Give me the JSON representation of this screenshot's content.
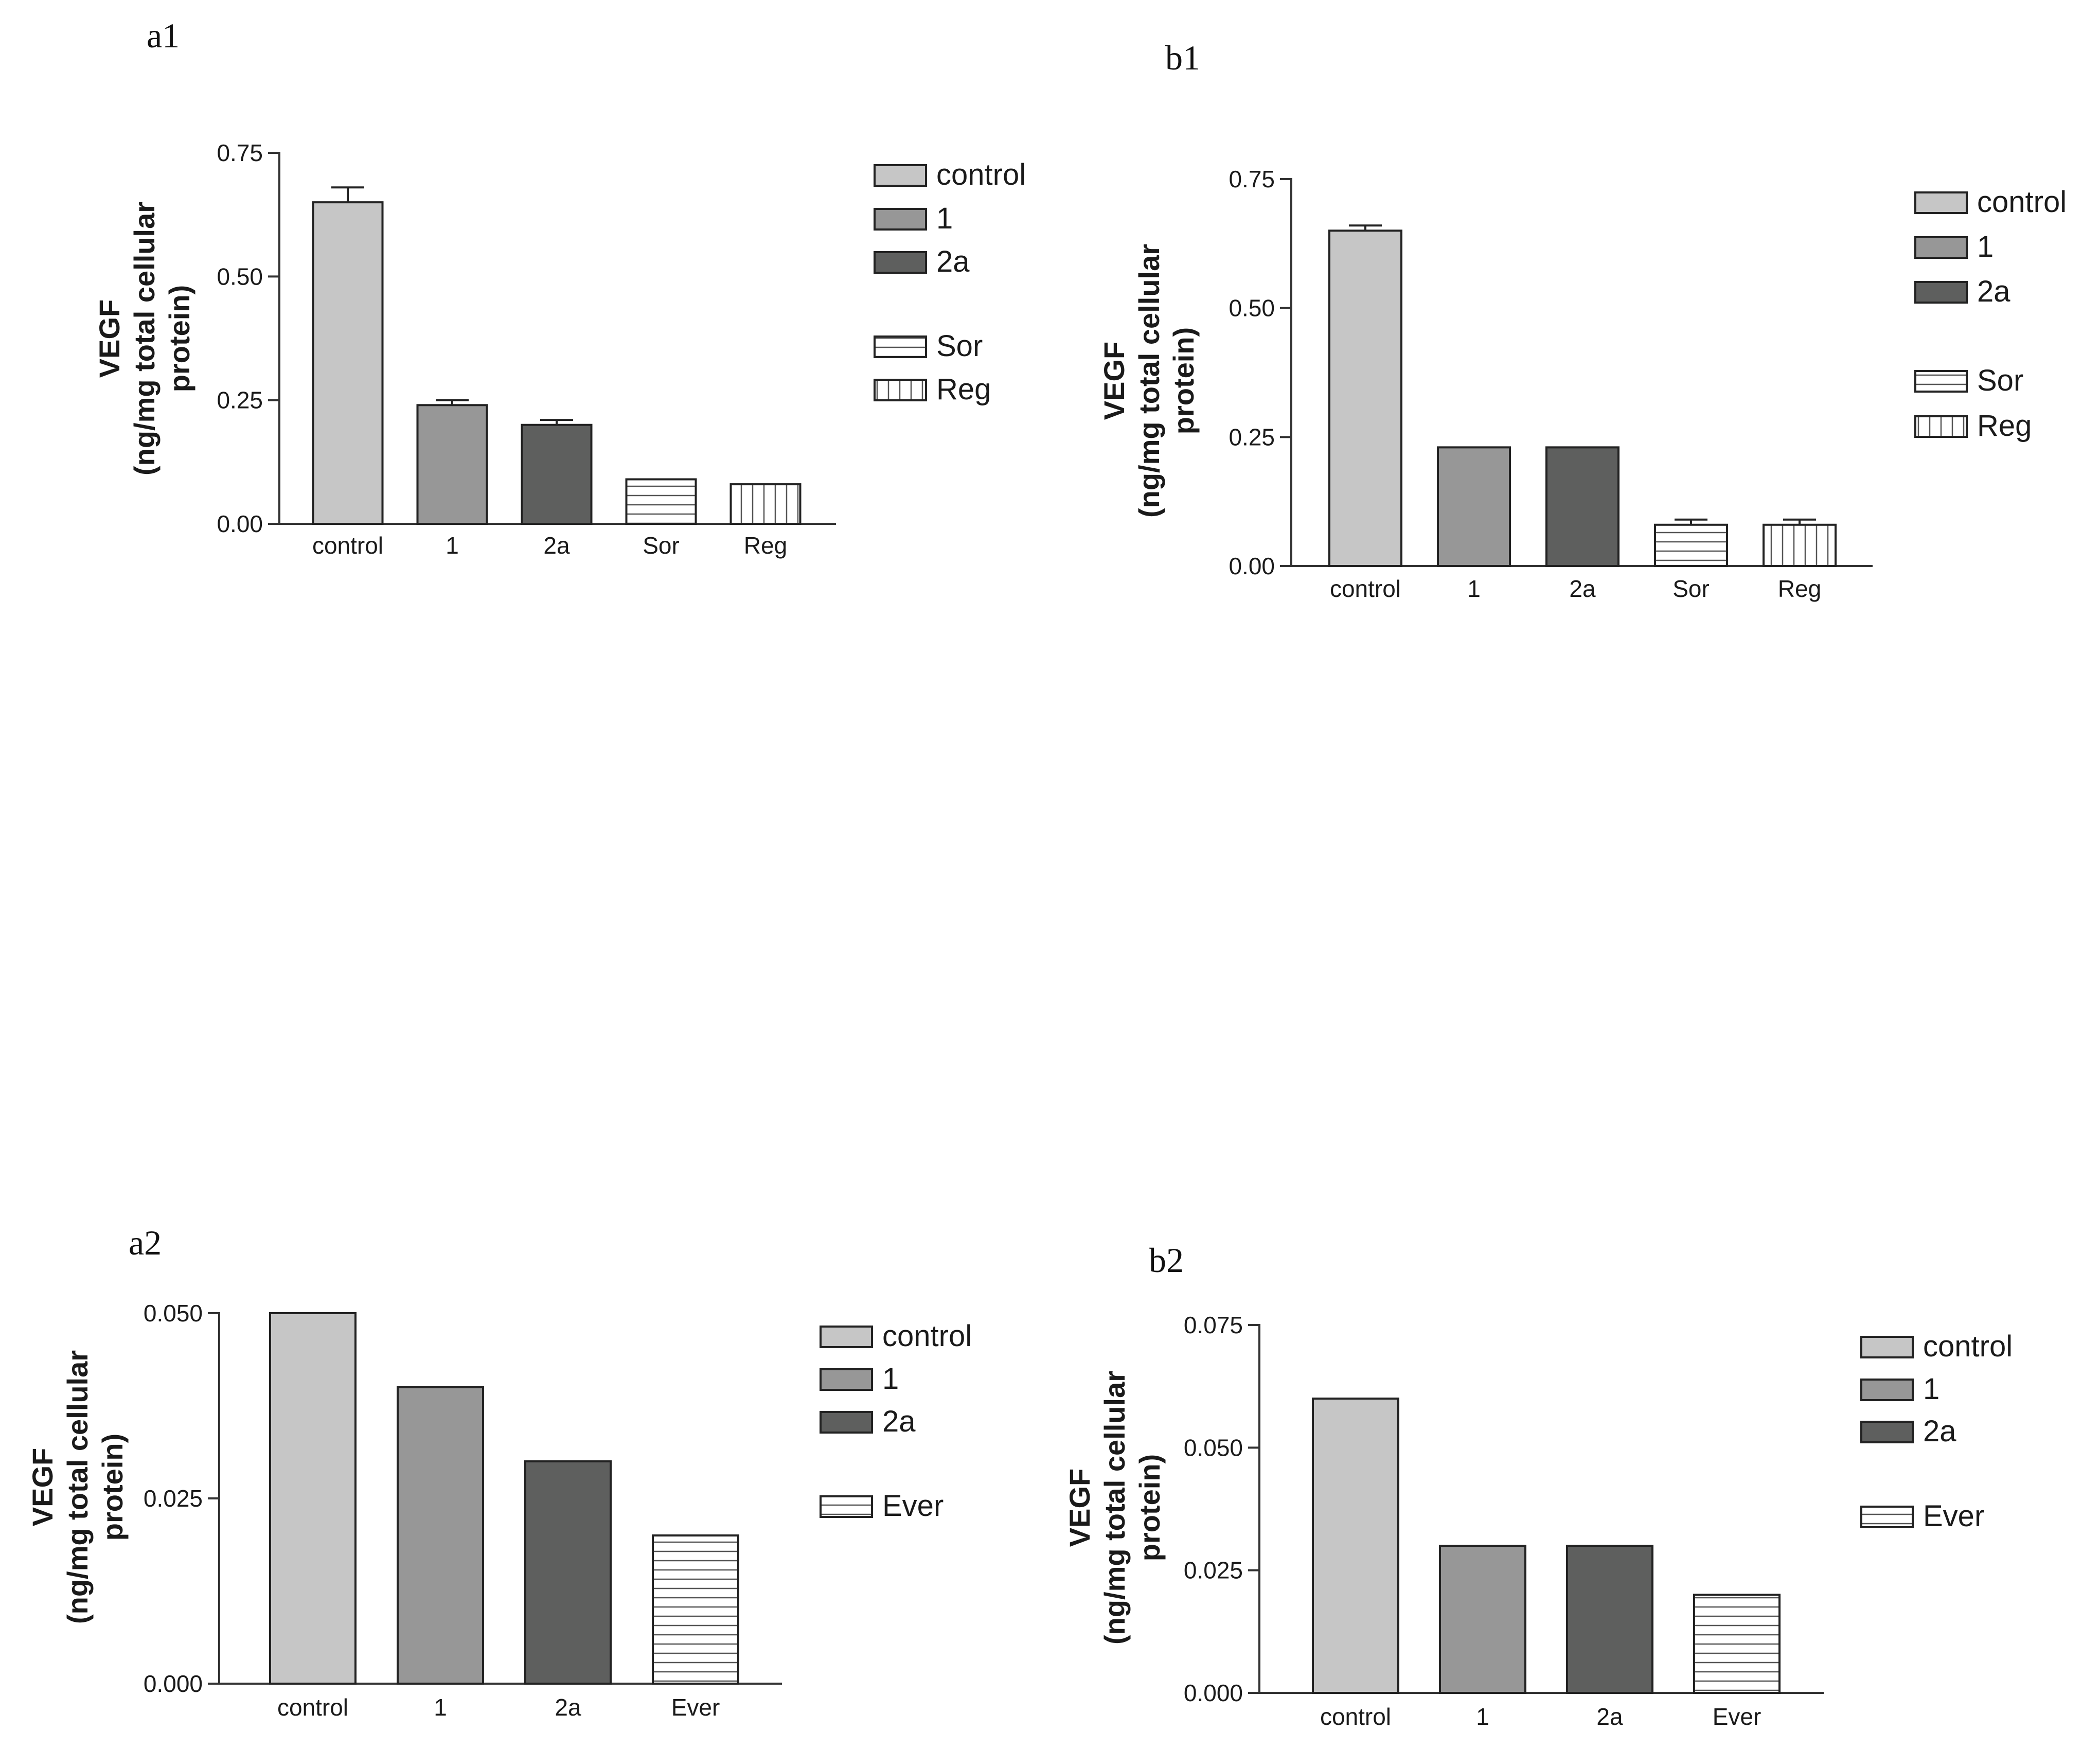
{
  "colors": {
    "control": "#c6c6c6",
    "1": "#979797",
    "2a": "#5e5f5e",
    "patterned": "#ffffff",
    "axis": "#333333"
  },
  "chart_data": [
    {
      "panel": "a1",
      "type": "bar",
      "categories": [
        "control",
        "1",
        "2a",
        "Sor",
        "Reg"
      ],
      "values": [
        0.65,
        0.24,
        0.2,
        0.09,
        0.08
      ],
      "errors": [
        0.03,
        0.01,
        0.01,
        0.0,
        0.0
      ],
      "fills": [
        "control",
        "1",
        "2a",
        "hstripe",
        "vstripe"
      ],
      "ylabel_lines": [
        "VEGF",
        "(ng/mg total cellular",
        "protein)"
      ],
      "ylim": [
        0,
        0.75
      ],
      "yticks": [
        "0.00",
        "0.25",
        "0.50",
        "0.75"
      ],
      "legend": [
        "control",
        "1",
        "2a",
        "Sor",
        "Reg"
      ],
      "legend_position": "right"
    },
    {
      "panel": "b1",
      "type": "bar",
      "categories": [
        "control",
        "1",
        "2a",
        "Sor",
        "Reg"
      ],
      "values": [
        0.65,
        0.23,
        0.23,
        0.08,
        0.08
      ],
      "errors": [
        0.01,
        0.0,
        0.0,
        0.01,
        0.01
      ],
      "fills": [
        "control",
        "1",
        "2a",
        "hstripe",
        "vstripe"
      ],
      "ylabel_lines": [
        "VEGF",
        "(ng/mg total cellular",
        "protein)"
      ],
      "ylim": [
        0,
        0.75
      ],
      "yticks": [
        "0.00",
        "0.25",
        "0.50",
        "0.75"
      ],
      "legend": [
        "control",
        "1",
        "2a",
        "Sor",
        "Reg"
      ],
      "legend_position": "right"
    },
    {
      "panel": "a2",
      "type": "bar",
      "categories": [
        "control",
        "1",
        "2a",
        "Ever"
      ],
      "values": [
        0.05,
        0.04,
        0.03,
        0.02
      ],
      "errors": [
        0,
        0,
        0,
        0
      ],
      "fills": [
        "control",
        "1",
        "2a",
        "hstripe"
      ],
      "ylabel_lines": [
        "VEGF",
        "(ng/mg total cellular",
        "protein)"
      ],
      "ylim": [
        0,
        0.05
      ],
      "yticks": [
        "0.000",
        "0.025",
        "0.050"
      ],
      "legend": [
        "control",
        "1",
        "2a",
        "Ever"
      ],
      "legend_position": "right"
    },
    {
      "panel": "b2",
      "type": "bar",
      "categories": [
        "control",
        "1",
        "2a",
        "Ever"
      ],
      "values": [
        0.06,
        0.03,
        0.03,
        0.02
      ],
      "errors": [
        0,
        0,
        0,
        0
      ],
      "fills": [
        "control",
        "1",
        "2a",
        "hstripe"
      ],
      "ylabel_lines": [
        "VEGF",
        "(ng/mg total cellular",
        "protein)"
      ],
      "ylim": [
        0,
        0.075
      ],
      "yticks": [
        "0.000",
        "0.025",
        "0.050",
        "0.075"
      ],
      "legend": [
        "control",
        "1",
        "2a",
        "Ever"
      ],
      "legend_position": "right"
    }
  ]
}
